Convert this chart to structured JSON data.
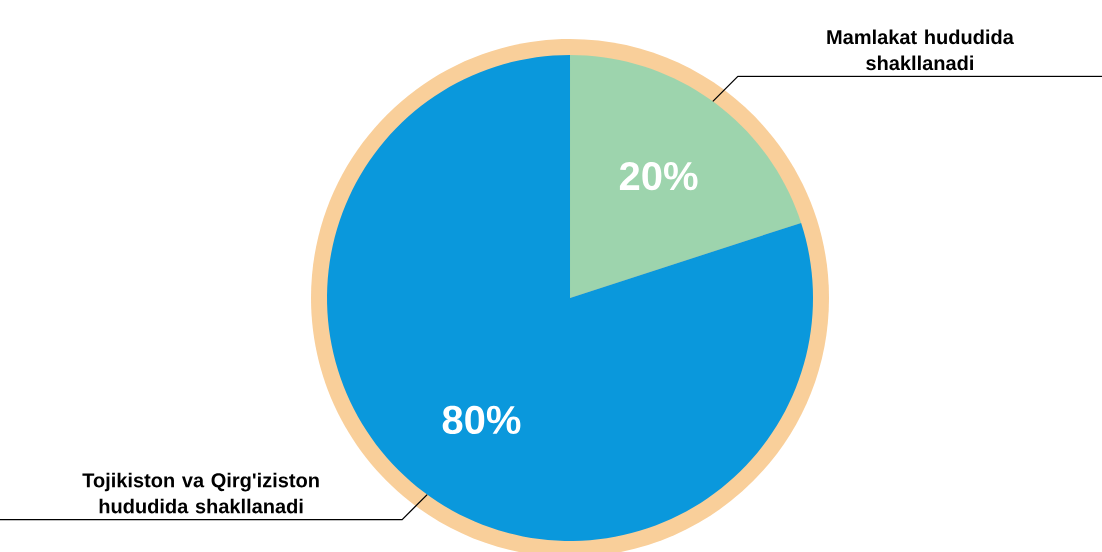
{
  "chart_data": {
    "type": "pie",
    "categories": [
      "Mamlakat hududida shakllanadi",
      "Tojikiston va Qirg'iziston hududida shakllanadi"
    ],
    "values": [
      20,
      80
    ],
    "colors": [
      "#9dd4ad",
      "#0a98dc"
    ],
    "value_labels": [
      "20%",
      "80%"
    ]
  }
}
